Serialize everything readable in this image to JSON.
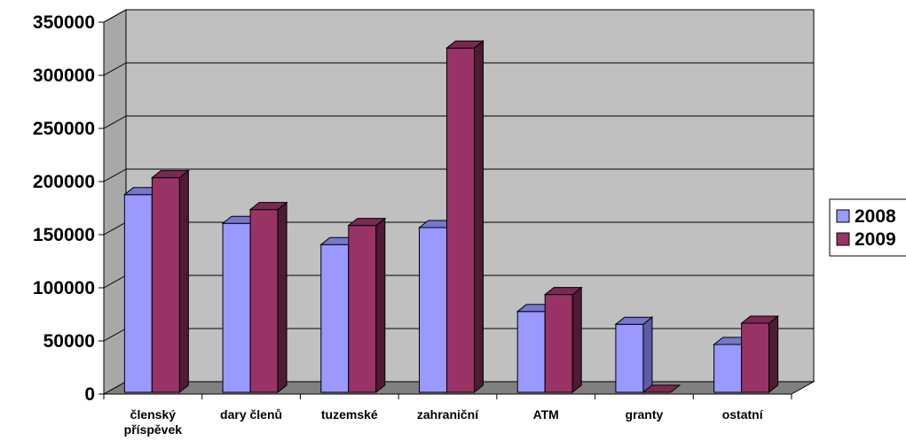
{
  "chart_data": {
    "type": "bar",
    "categories": [
      [
        "členský",
        "příspěvek"
      ],
      [
        "dary členů"
      ],
      [
        "tuzemské"
      ],
      [
        "zahraniční"
      ],
      [
        "ATM"
      ],
      [
        "granty"
      ],
      [
        "ostatní"
      ]
    ],
    "series": [
      {
        "name": "2008",
        "color": "#9999ff",
        "top_color": "#7777cc",
        "side_color": "#5c5ca8",
        "values": [
          186000,
          159000,
          139000,
          155000,
          76000,
          64000,
          45000
        ]
      },
      {
        "name": "2009",
        "color": "#993366",
        "top_color": "#7a2952",
        "side_color": "#4f1a35",
        "values": [
          202000,
          172000,
          157000,
          324000,
          92000,
          0,
          65000
        ]
      }
    ],
    "ylim": [
      0,
      350000
    ],
    "yticks": [
      "0",
      "50000",
      "100000",
      "150000",
      "200000",
      "250000",
      "300000",
      "350000"
    ],
    "grid": true,
    "legend_position": "right",
    "wall_color": "#c0c0c0",
    "floor_color": "#808080"
  }
}
